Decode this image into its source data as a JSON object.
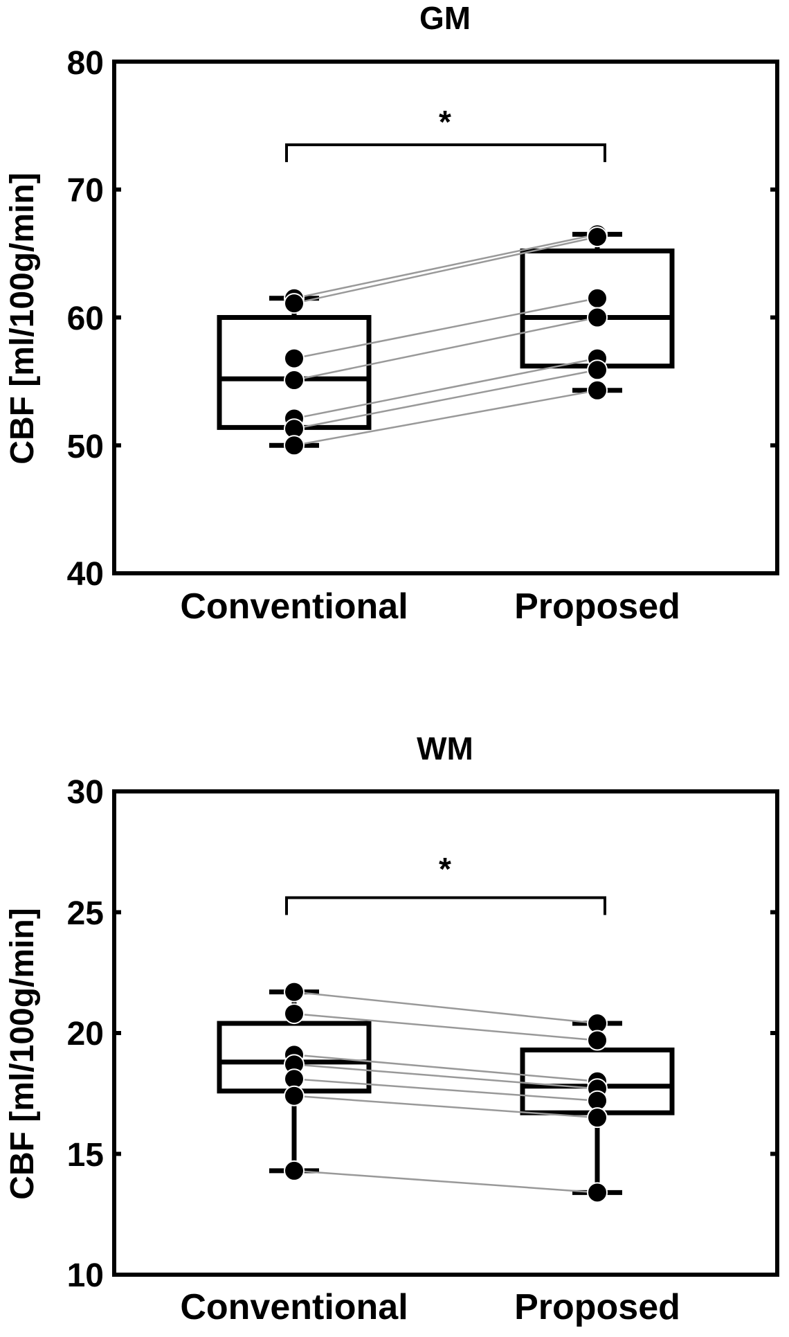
{
  "chart_data": [
    {
      "type": "box",
      "title": "GM",
      "ylabel": "CBF  [ml/100g/min]",
      "xlabel": "",
      "categories": [
        "Conventional",
        "Proposed"
      ],
      "ylim": [
        40,
        80
      ],
      "yticks": [
        "40",
        "50",
        "60",
        "70",
        "80"
      ],
      "boxes": [
        {
          "name": "Conventional",
          "min": 50.0,
          "q1": 51.4,
          "median": 55.2,
          "q3": 60.0,
          "max": 61.5
        },
        {
          "name": "Proposed",
          "min": 54.3,
          "q1": 56.2,
          "median": 60.0,
          "q3": 65.2,
          "max": 66.5
        }
      ],
      "pairs": [
        [
          61.5,
          66.5
        ],
        [
          61.1,
          66.3
        ],
        [
          56.8,
          61.5
        ],
        [
          55.1,
          60.0
        ],
        [
          52.1,
          56.8
        ],
        [
          51.3,
          55.9
        ],
        [
          50.0,
          54.3
        ]
      ],
      "significance": {
        "from": "Conventional",
        "to": "Proposed",
        "label": "*",
        "y": 73.5
      }
    },
    {
      "type": "box",
      "title": "WM",
      "ylabel": "CBF  [ml/100g/min]",
      "xlabel": "",
      "categories": [
        "Conventional",
        "Proposed"
      ],
      "ylim": [
        10,
        30
      ],
      "yticks": [
        "10",
        "15",
        "20",
        "25",
        "30"
      ],
      "boxes": [
        {
          "name": "Conventional",
          "min": 14.3,
          "q1": 17.6,
          "median": 18.8,
          "q3": 20.4,
          "max": 21.7
        },
        {
          "name": "Proposed",
          "min": 13.4,
          "q1": 16.7,
          "median": 17.8,
          "q3": 19.3,
          "max": 20.4
        }
      ],
      "pairs": [
        [
          21.7,
          20.4
        ],
        [
          20.8,
          19.7
        ],
        [
          19.1,
          18.0
        ],
        [
          18.7,
          17.7
        ],
        [
          18.1,
          17.2
        ],
        [
          17.4,
          16.5
        ],
        [
          14.3,
          13.4
        ]
      ],
      "significance": {
        "from": "Conventional",
        "to": "Proposed",
        "label": "*",
        "y": 25.6
      }
    }
  ]
}
